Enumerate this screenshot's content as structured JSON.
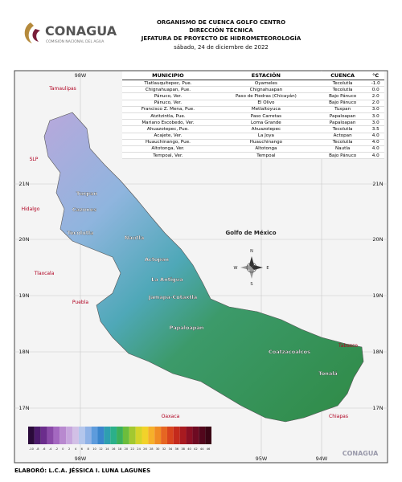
{
  "logo": {
    "name": "CONAGUA",
    "subtitle": "COMISIÓN NACIONAL DEL AGUA"
  },
  "header": {
    "line1": "ORGANISMO DE CUENCA GOLFO CENTRO",
    "line2": "DIRECCIÓN TÉCNICA",
    "line3": "JEFATURA DE PROYECTO DE HIDROMETEOROLOGÍA",
    "date": "sábado, 24 de diciembre de 2022"
  },
  "table": {
    "columns": [
      "MUNICIPIO",
      "ESTACIÓN",
      "CUENCA",
      "°C"
    ],
    "rows": [
      [
        "Tlatlauquitepec, Pue.",
        "Oyameles",
        "Tecolutla",
        "-1.0"
      ],
      [
        "Chignahuapan, Pue.",
        "Chignahuapan",
        "Tecolutla",
        "0.0"
      ],
      [
        "Pánuco, Ver.",
        "Paso de Piedras (Chicayán)",
        "Bajo Pánuco",
        "2.0"
      ],
      [
        "Pánuco, Ver.",
        "El Olivo",
        "Bajo Pánuco",
        "2.0"
      ],
      [
        "Francisco Z. Mena, Pue.",
        "Metlaltoyuca",
        "Tuxpan",
        "3.0"
      ],
      [
        "Atzitzintla, Pue.",
        "Paso Carretas",
        "Papaloapan",
        "3.0"
      ],
      [
        "Mariano Escobedo, Ver.",
        "Loma Grande",
        "Papaloapan",
        "3.0"
      ],
      [
        "Ahuazotepec, Pue.",
        "Ahuazotepec",
        "Tecolutla",
        "3.5"
      ],
      [
        "Acajete, Ver.",
        "La Joya",
        "Actopan",
        "4.0"
      ],
      [
        "Huauchinango, Pue.",
        "Huauchinango",
        "Tecolutla",
        "4.0"
      ],
      [
        "Altotonga, Ver.",
        "Altotonga",
        "Nautla",
        "4.0"
      ],
      [
        "Tempoal, Ver.",
        "Tempoal",
        "Bajo Pánuco",
        "4.0"
      ]
    ]
  },
  "map": {
    "longitudes": [
      "98W",
      "95W",
      "94W"
    ],
    "latitudes": [
      "21N",
      "20N",
      "19N",
      "18N",
      "17N"
    ],
    "states": [
      "Tamaulipas",
      "SLP",
      "Hidalgo",
      "Tlaxcala",
      "Puebla",
      "Oaxaca",
      "Chiapas",
      "Tabasco"
    ],
    "sea": "Golfo de México",
    "basins": [
      "Tuxpan",
      "Cazones",
      "Tecolutla",
      "Nautla",
      "Actopan",
      "La Antigua",
      "Jamapa-Cotaxtla",
      "Papaloapan",
      "Coatzacoalcos",
      "Tonalá"
    ],
    "compass": [
      "N",
      "S",
      "E",
      "W"
    ]
  },
  "colorbar": [
    "-10",
    "-8",
    "-6",
    "-4",
    "-2",
    "0",
    "2",
    "4",
    "6",
    "8",
    "10",
    "12",
    "14",
    "16",
    "18",
    "20",
    "22",
    "24",
    "26",
    "28",
    "30",
    "32",
    "34",
    "36",
    "38",
    "40",
    "42",
    "44",
    "46"
  ],
  "footer": {
    "author": "ELABORÓ: L.C.A. JÉSSICA I. LUNA LAGUNES",
    "watermark": "CONAGUA"
  }
}
